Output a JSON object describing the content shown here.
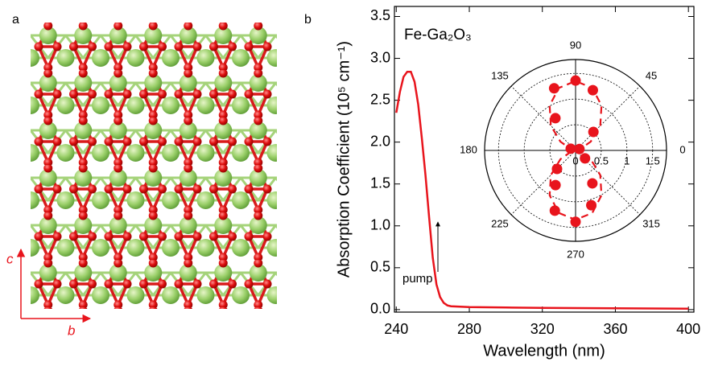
{
  "figure": {
    "panel_labels": [
      "a",
      "b"
    ],
    "crystal_axes": [
      "c",
      "b"
    ]
  },
  "chart_data": [
    {
      "type": "line",
      "annotations": [
        "Fe-Ga₂O₃",
        "pump"
      ],
      "x_label": "Wavelength (nm)",
      "y_label": "Absorption Coefficient (10⁵ cm⁻¹)",
      "x": [
        240,
        242,
        244,
        246,
        248,
        250,
        252,
        254,
        256,
        258,
        260,
        262,
        264,
        266,
        268,
        270,
        280,
        300,
        320,
        360,
        400
      ],
      "values": [
        2.35,
        2.6,
        2.78,
        2.84,
        2.84,
        2.72,
        2.45,
        2.05,
        1.6,
        1.1,
        0.62,
        0.3,
        0.15,
        0.08,
        0.05,
        0.04,
        0.03,
        0.025,
        0.02,
        0.015,
        0.01
      ],
      "color": "#e8141c",
      "xlim": [
        239,
        403
      ],
      "ylim": [
        -0.03,
        3.62
      ],
      "xticks": [
        240,
        280,
        320,
        360,
        400
      ],
      "yticks": [
        {
          "value": 0,
          "label": "0.0"
        },
        0.5,
        {
          "value": 1,
          "label": "1.0"
        },
        1.5,
        {
          "value": 2,
          "label": "2.0"
        },
        2.5,
        {
          "value": 3,
          "label": "3.0"
        },
        3.5
      ]
    },
    {
      "type": "polar",
      "rlim": [
        0,
        1.77
      ],
      "rticks": [
        0,
        0.5,
        1,
        1.5
      ],
      "angle_ticks": [
        0,
        45,
        90,
        135,
        180,
        225,
        270,
        315
      ],
      "series": [
        {
          "kind": "scatter",
          "color": "#e8141c",
          "theta": [
            90,
            109,
            74,
            122,
            46,
            160,
            20,
            320,
            225,
            240,
            297,
            251,
            286,
            270
          ],
          "r": [
            1.36,
            1.28,
            1.22,
            0.74,
            0.5,
            0.1,
            0.08,
            0.24,
            0.51,
            0.78,
            0.72,
            1.24,
            1.11,
            1.39
          ]
        },
        {
          "kind": "line",
          "color": "#e8141c",
          "theta": [
            0,
            15,
            30,
            45,
            60,
            75,
            90,
            105,
            120,
            135,
            150,
            165,
            180,
            195,
            210,
            225,
            240,
            255,
            270,
            285,
            300,
            315,
            330,
            345,
            360
          ],
          "r": [
            0,
            0.09,
            0.34,
            0.68,
            1.01,
            1.26,
            1.35,
            1.26,
            1.01,
            0.68,
            0.34,
            0.09,
            0,
            0.09,
            0.34,
            0.68,
            1.01,
            1.26,
            1.35,
            1.26,
            1.01,
            0.68,
            0.34,
            0.09,
            0
          ]
        }
      ]
    }
  ]
}
